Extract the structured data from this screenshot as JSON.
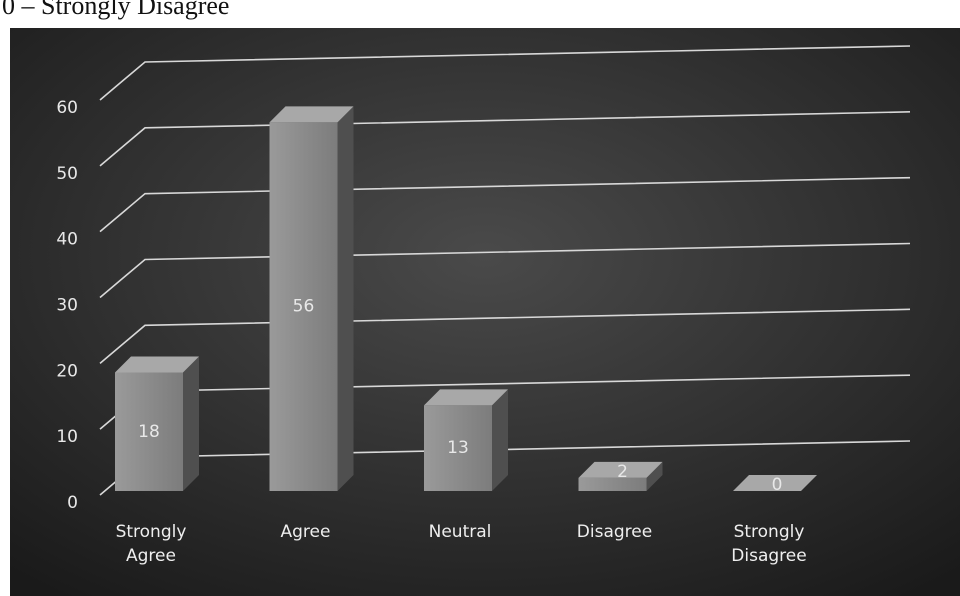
{
  "chart_data": {
    "type": "bar3d",
    "caption": "0 – Strongly Disagree",
    "categories": [
      "Strongly Agree",
      "Agree",
      "Neutral",
      "Disagree",
      "Strongly Disagree"
    ],
    "values": [
      18,
      56,
      13,
      2,
      0
    ],
    "color": "#8c8c8c",
    "ylim": [
      0,
      60
    ],
    "yticks": [
      0,
      10,
      20,
      30,
      40,
      50,
      60
    ],
    "grid": true
  }
}
